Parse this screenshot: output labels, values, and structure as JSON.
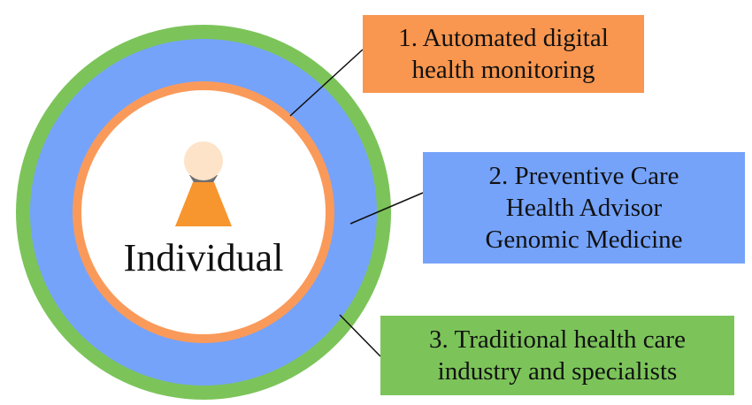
{
  "diagram": {
    "center_label": "Individual",
    "icon": "person-icon",
    "colors": {
      "outer_ring": "#7cc45a",
      "middle_band": "#75a3fa",
      "inner_ring": "#fa9a5a",
      "core": "#ffffff",
      "person_head": "#fde3c8",
      "person_neck": "#6f6f6f",
      "person_body": "#f7962f",
      "connector": "#111111"
    },
    "callouts": [
      {
        "number": 1,
        "lines": [
          "1. Automated digital",
          "health monitoring"
        ],
        "color": "#f9964f"
      },
      {
        "number": 2,
        "lines": [
          "2. Preventive Care",
          "Health Advisor",
          "Genomic Medicine"
        ],
        "color": "#75a3fa"
      },
      {
        "number": 3,
        "lines": [
          "3. Traditional health care",
          "industry and specialists"
        ],
        "color": "#7cc45a"
      }
    ]
  }
}
